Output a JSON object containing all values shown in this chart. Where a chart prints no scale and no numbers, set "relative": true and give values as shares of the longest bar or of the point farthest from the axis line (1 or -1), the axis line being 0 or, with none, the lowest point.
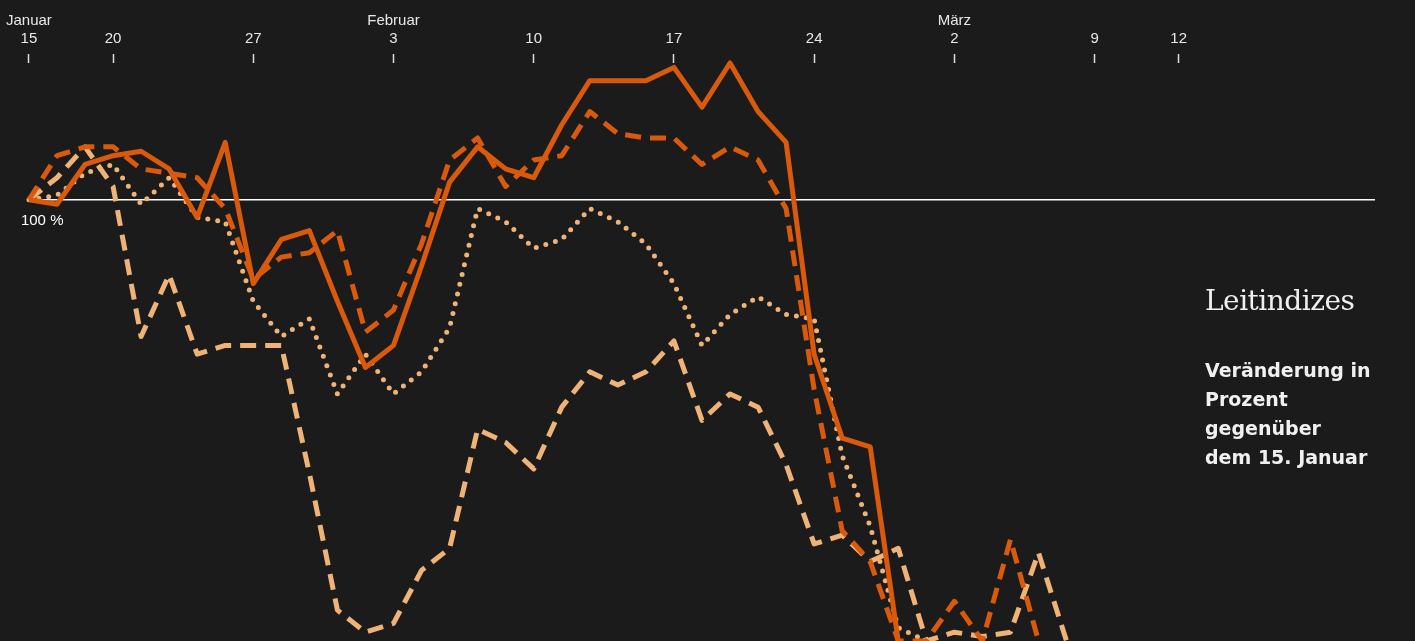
{
  "chart_data": {
    "type": "line",
    "title": "Leitindizes",
    "subtitle": "Veränderung in Prozent gegenüber dem 15. Januar",
    "relative": true,
    "marker": "none",
    "categories": [
      "Januar\n15",
      null,
      null,
      "20",
      null,
      null,
      null,
      null,
      "27",
      null,
      null,
      null,
      null,
      "Februar\n3",
      null,
      null,
      null,
      null,
      "10",
      null,
      null,
      null,
      null,
      "17",
      null,
      null,
      null,
      null,
      "24",
      null,
      null,
      null,
      null,
      "März\n2",
      null,
      null,
      null,
      null,
      "9",
      null,
      null,
      "12",
      null,
      null,
      null,
      null,
      null,
      null,
      null
    ],
    "series": [
      {
        "color": "#d95a0c",
        "line_style": "solid",
        "values": [
          0,
          -0.01,
          0.08,
          0.1,
          0.11,
          0.07,
          -0.04,
          0.13,
          -0.19,
          -0.09,
          -0.07,
          -0.23,
          -0.38,
          -0.33,
          -0.15,
          0.04,
          0.12,
          0.07,
          0.05,
          0.17,
          0.27,
          0.27,
          0.27,
          0.3,
          0.21,
          0.31,
          0.2,
          0.13,
          -0.35,
          -0.54,
          -0.56,
          -1,
          null,
          null,
          null,
          null,
          null,
          null,
          null,
          null,
          null,
          null,
          null,
          null,
          null,
          null,
          null,
          null,
          null
        ]
      },
      {
        "color": "#d95a0c",
        "line_style": "dashed",
        "values": [
          0,
          0.1,
          0.12,
          0.12,
          0.07,
          0.06,
          0.05,
          -0.02,
          -0.18,
          -0.13,
          -0.12,
          -0.07,
          -0.3,
          -0.25,
          -0.1,
          0.09,
          0.14,
          0.03,
          0.09,
          0.1,
          0.2,
          0.15,
          0.14,
          0.14,
          0.08,
          0.12,
          0.09,
          -0.02,
          -0.43,
          -0.75,
          -0.82,
          -1,
          -1,
          -0.91,
          -1,
          -0.77,
          -1,
          null,
          null,
          null,
          null,
          null,
          null,
          null,
          null,
          null,
          null,
          null,
          null
        ]
      },
      {
        "color": "#efb277",
        "line_style": "dotted",
        "values": [
          0,
          0.01,
          0.06,
          0.08,
          -0.01,
          0.05,
          -0.04,
          -0.05,
          -0.23,
          -0.31,
          -0.27,
          -0.44,
          -0.35,
          -0.44,
          -0.39,
          -0.29,
          -0.02,
          -0.05,
          -0.11,
          -0.09,
          -0.02,
          -0.05,
          -0.1,
          -0.19,
          -0.33,
          -0.26,
          -0.22,
          -0.26,
          -0.27,
          -0.58,
          -0.74,
          -0.97,
          -1,
          null,
          null,
          null,
          null,
          null,
          null,
          null,
          null,
          null,
          null,
          null,
          null,
          null,
          null,
          null,
          null
        ]
      },
      {
        "color": "#efb277",
        "line_style": "dashed",
        "values": [
          0,
          0.05,
          0.12,
          0.03,
          -0.31,
          -0.17,
          -0.35,
          -0.33,
          -0.33,
          -0.33,
          -0.62,
          -0.93,
          -0.98,
          -0.96,
          -0.84,
          -0.79,
          -0.52,
          -0.55,
          -0.61,
          -0.47,
          -0.39,
          -0.42,
          -0.39,
          -0.32,
          -0.5,
          -0.44,
          -0.47,
          -0.6,
          -0.78,
          -0.76,
          -0.82,
          -0.79,
          -1,
          -0.98,
          -0.99,
          -0.98,
          -0.8,
          -1,
          null,
          null,
          null,
          null,
          null,
          null,
          null,
          null,
          null,
          null,
          null
        ]
      }
    ],
    "ref_lines": [
      {
        "axis": "y",
        "value": 0,
        "color": "#ffffff"
      }
    ],
    "annotations": [
      "100 %"
    ]
  }
}
